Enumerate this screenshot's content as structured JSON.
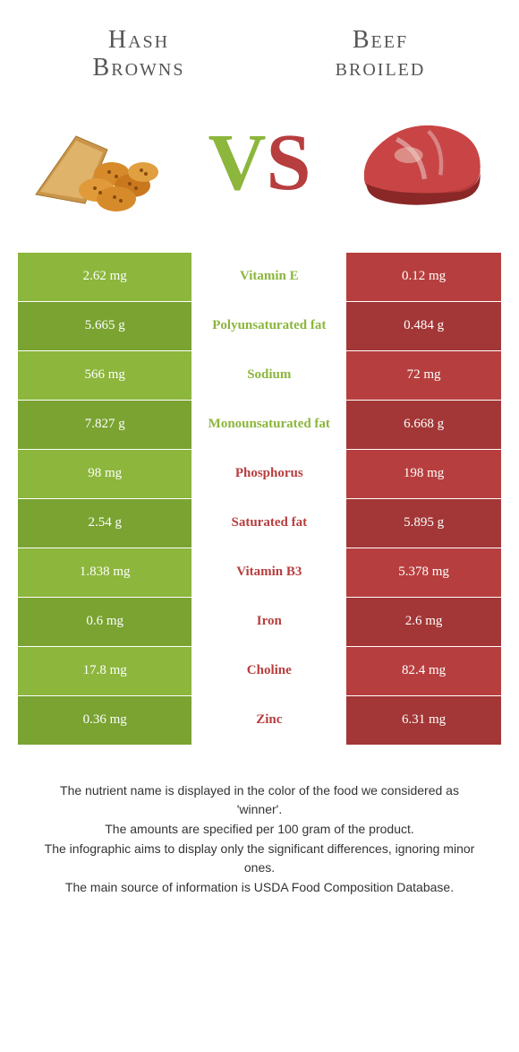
{
  "colors": {
    "green": "#8cb63c",
    "red": "#b73e3e",
    "greenDark": "#7aa332",
    "redDark": "#a33636"
  },
  "foods": {
    "left": {
      "titleLine1": "Hash",
      "titleLine2": "Browns"
    },
    "right": {
      "titleLine1": "Beef",
      "titleLine2": "broiled"
    }
  },
  "vs": {
    "v": "V",
    "s": "S"
  },
  "rows": [
    {
      "nutrient": "Vitamin E",
      "left": "2.62 mg",
      "right": "0.12 mg",
      "winner": "left"
    },
    {
      "nutrient": "Polyunsaturated fat",
      "left": "5.665 g",
      "right": "0.484 g",
      "winner": "left"
    },
    {
      "nutrient": "Sodium",
      "left": "566 mg",
      "right": "72 mg",
      "winner": "left"
    },
    {
      "nutrient": "Monounsaturated fat",
      "left": "7.827 g",
      "right": "6.668 g",
      "winner": "left"
    },
    {
      "nutrient": "Phosphorus",
      "left": "98 mg",
      "right": "198 mg",
      "winner": "right"
    },
    {
      "nutrient": "Saturated fat",
      "left": "2.54 g",
      "right": "5.895 g",
      "winner": "right"
    },
    {
      "nutrient": "Vitamin B3",
      "left": "1.838 mg",
      "right": "5.378 mg",
      "winner": "right"
    },
    {
      "nutrient": "Iron",
      "left": "0.6 mg",
      "right": "2.6 mg",
      "winner": "right"
    },
    {
      "nutrient": "Choline",
      "left": "17.8 mg",
      "right": "82.4 mg",
      "winner": "right"
    },
    {
      "nutrient": "Zinc",
      "left": "0.36 mg",
      "right": "6.31 mg",
      "winner": "right"
    }
  ],
  "footer": {
    "l1": "The nutrient name is displayed in the color of the food we considered as 'winner'.",
    "l2": "The amounts are specified per 100 gram of the product.",
    "l3": "The infographic aims to display only the significant differences, ignoring minor ones.",
    "l4": "The main source of information is USDA Food Composition Database."
  }
}
